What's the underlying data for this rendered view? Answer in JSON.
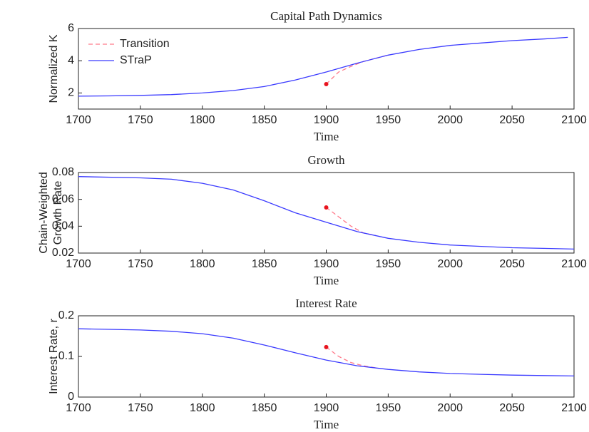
{
  "chart_data": [
    {
      "type": "line",
      "title": "Capital Path Dynamics",
      "xlabel": "Time",
      "ylabel": [
        "Normalized K"
      ],
      "xlim": [
        1700,
        2100
      ],
      "xticks": [
        1700,
        1750,
        1800,
        1850,
        1900,
        1950,
        2000,
        2050,
        2100
      ],
      "ylim": [
        1,
        6
      ],
      "yticks": [
        2,
        4,
        6
      ],
      "legend": "upper left",
      "series": [
        {
          "name": "Transition",
          "color": "#ff7a8a",
          "dashed": true,
          "start_marker": true,
          "x": [
            1900,
            1910,
            1920,
            1930,
            1940,
            1950
          ],
          "values": [
            2.55,
            3.3,
            3.65,
            3.95,
            4.15,
            4.35
          ]
        },
        {
          "name": "STraP",
          "color": "#3b3bff",
          "dashed": false,
          "start_marker": false,
          "x": [
            1700,
            1725,
            1750,
            1775,
            1800,
            1825,
            1850,
            1875,
            1900,
            1925,
            1950,
            1975,
            2000,
            2025,
            2050,
            2075,
            2095
          ],
          "values": [
            1.8,
            1.82,
            1.85,
            1.9,
            2.0,
            2.15,
            2.4,
            2.8,
            3.3,
            3.85,
            4.35,
            4.7,
            4.95,
            5.1,
            5.25,
            5.35,
            5.45
          ]
        }
      ]
    },
    {
      "type": "line",
      "title": "Growth",
      "xlabel": "Time",
      "ylabel": [
        "Chain-Weighted",
        "Growth Rate"
      ],
      "xlim": [
        1700,
        2100
      ],
      "xticks": [
        1700,
        1750,
        1800,
        1850,
        1900,
        1950,
        2000,
        2050,
        2100
      ],
      "ylim": [
        0.02,
        0.08
      ],
      "yticks": [
        0.02,
        0.04,
        0.06,
        0.08
      ],
      "series": [
        {
          "color": "#ff7a8a",
          "dashed": true,
          "start_marker": true,
          "x": [
            1900,
            1910,
            1920,
            1930,
            1940
          ],
          "values": [
            0.054,
            0.047,
            0.04,
            0.035,
            0.033
          ]
        },
        {
          "color": "#3b3bff",
          "dashed": false,
          "start_marker": false,
          "x": [
            1700,
            1750,
            1775,
            1800,
            1825,
            1850,
            1875,
            1900,
            1925,
            1950,
            1975,
            2000,
            2025,
            2050,
            2075,
            2100
          ],
          "values": [
            0.077,
            0.076,
            0.075,
            0.072,
            0.067,
            0.059,
            0.05,
            0.043,
            0.036,
            0.031,
            0.028,
            0.026,
            0.025,
            0.024,
            0.0235,
            0.023
          ]
        }
      ]
    },
    {
      "type": "line",
      "title": "Interest Rate",
      "xlabel": "Time",
      "ylabel": [
        "Interest Rate, r"
      ],
      "xlim": [
        1700,
        2100
      ],
      "xticks": [
        1700,
        1750,
        1800,
        1850,
        1900,
        1950,
        2000,
        2050,
        2100
      ],
      "ylim": [
        0,
        0.2
      ],
      "yticks": [
        0,
        0.1,
        0.2
      ],
      "series": [
        {
          "color": "#ff7a8a",
          "dashed": true,
          "start_marker": true,
          "x": [
            1900,
            1910,
            1920,
            1930,
            1940
          ],
          "values": [
            0.123,
            0.1,
            0.085,
            0.077,
            0.072
          ]
        },
        {
          "color": "#3b3bff",
          "dashed": false,
          "start_marker": false,
          "x": [
            1700,
            1750,
            1775,
            1800,
            1825,
            1850,
            1875,
            1900,
            1925,
            1950,
            1975,
            2000,
            2025,
            2050,
            2075,
            2100
          ],
          "values": [
            0.168,
            0.165,
            0.162,
            0.156,
            0.145,
            0.128,
            0.109,
            0.091,
            0.077,
            0.068,
            0.062,
            0.058,
            0.056,
            0.054,
            0.053,
            0.052
          ]
        }
      ]
    }
  ]
}
